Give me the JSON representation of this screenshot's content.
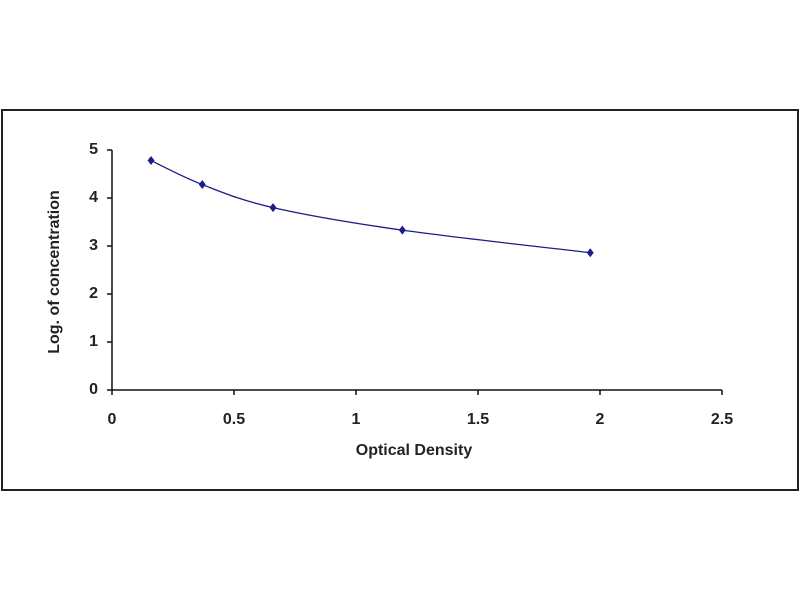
{
  "chart_data": {
    "type": "scatter",
    "x_label": "Optical Density",
    "y_label": "Log. of concentration",
    "x": [
      0.16,
      0.37,
      0.66,
      1.19,
      1.96
    ],
    "values": [
      4.78,
      4.28,
      3.8,
      3.33,
      2.86
    ],
    "color": "#1c1c8a",
    "smooth_line": true,
    "xlim": [
      0,
      2.5
    ],
    "xticks": [
      0,
      0.5,
      1,
      1.5,
      2,
      2.5
    ],
    "ylim": [
      0,
      5
    ],
    "yticks": [
      0,
      1,
      2,
      3,
      4,
      5
    ],
    "grid": false
  }
}
